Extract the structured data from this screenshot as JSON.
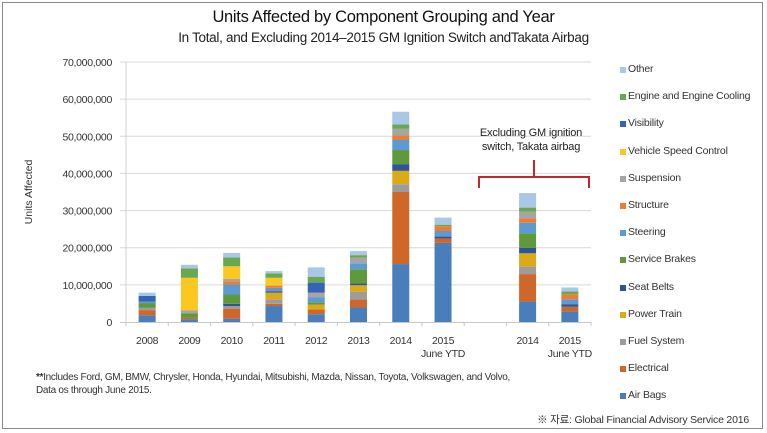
{
  "chart_data": {
    "type": "bar",
    "stacked": true,
    "title": "Units Affected by Component Grouping and Year",
    "subtitle": "In Total, and Excluding 2014–2015 GM Ignition Switch andTakata Airbag",
    "xlabel": "",
    "ylabel": "Units Affected",
    "ylim": [
      0,
      70000000
    ],
    "yticks": [
      0,
      10000000,
      20000000,
      30000000,
      40000000,
      50000000,
      60000000,
      70000000
    ],
    "ytick_labels": [
      "0",
      "10,000,000",
      "20,000,000",
      "30,000,000",
      "40,000,000",
      "50,000,000",
      "60,000,000",
      "70,000,000"
    ],
    "grid": true,
    "legend_position": "right",
    "categories": [
      {
        "label": "2008",
        "sublabel": ""
      },
      {
        "label": "2009",
        "sublabel": ""
      },
      {
        "label": "2010",
        "sublabel": ""
      },
      {
        "label": "2011",
        "sublabel": ""
      },
      {
        "label": "2012",
        "sublabel": ""
      },
      {
        "label": "2013",
        "sublabel": ""
      },
      {
        "label": "2014",
        "sublabel": ""
      },
      {
        "label": "2015",
        "sublabel": "June YTD"
      },
      {
        "label": "",
        "sublabel": ""
      },
      {
        "label": "2014",
        "sublabel": ""
      },
      {
        "label": "2015",
        "sublabel": "June YTD"
      }
    ],
    "series": [
      {
        "name": "Air Bags",
        "color": "#4a7ebb",
        "values": [
          1800000,
          700000,
          900000,
          4300000,
          2100000,
          3900000,
          15600000,
          21300000,
          0,
          5500000,
          2800000
        ]
      },
      {
        "name": "Electrical",
        "color": "#d0672a",
        "values": [
          1400000,
          400000,
          2700000,
          600000,
          1300000,
          2200000,
          19400000,
          1200000,
          0,
          7400000,
          1300000
        ]
      },
      {
        "name": "Fuel System",
        "color": "#9c9c9c",
        "values": [
          600000,
          0,
          700000,
          1200000,
          0,
          2000000,
          2100000,
          0,
          0,
          2000000,
          0
        ]
      },
      {
        "name": "Power Train",
        "color": "#dcaa14",
        "values": [
          0,
          0,
          0,
          1800000,
          1300000,
          1800000,
          3600000,
          0,
          0,
          3600000,
          0
        ]
      },
      {
        "name": "Seat Belts",
        "color": "#2f5597",
        "values": [
          0,
          0,
          600000,
          400000,
          0,
          500000,
          1800000,
          500000,
          0,
          1500000,
          700000
        ]
      },
      {
        "name": "Service Brakes",
        "color": "#5e9a3a",
        "values": [
          1300000,
          1200000,
          2500000,
          0,
          600000,
          3800000,
          3800000,
          0,
          0,
          3900000,
          0
        ]
      },
      {
        "name": "Steering",
        "color": "#5b9bd5",
        "values": [
          400000,
          0,
          2700000,
          900000,
          1300000,
          1600000,
          2700000,
          1500000,
          0,
          2800000,
          1300000
        ]
      },
      {
        "name": "Structure",
        "color": "#ed7d31",
        "values": [
          0,
          0,
          900000,
          600000,
          0,
          0,
          1200000,
          1300000,
          0,
          1200000,
          1400000
        ]
      },
      {
        "name": "Suspension",
        "color": "#a5a5a5",
        "values": [
          0,
          800000,
          600000,
          0,
          1300000,
          1500000,
          1800000,
          0,
          0,
          1800000,
          0
        ]
      },
      {
        "name": "Vehicle Speed Control",
        "color": "#fbc720",
        "values": [
          0,
          8800000,
          3400000,
          2100000,
          0,
          0,
          0,
          0,
          0,
          0,
          0
        ]
      },
      {
        "name": "Visibility",
        "color": "#3465b4",
        "values": [
          1500000,
          0,
          0,
          0,
          2700000,
          0,
          0,
          0,
          0,
          0,
          0
        ]
      },
      {
        "name": "Engine and Engine Cooling",
        "color": "#6aa84f",
        "values": [
          0,
          2500000,
          2400000,
          1200000,
          1600000,
          700000,
          1200000,
          400000,
          0,
          1100000,
          700000
        ]
      },
      {
        "name": "Other",
        "color": "#a9c7e8",
        "values": [
          900000,
          1000000,
          1200000,
          600000,
          2500000,
          1100000,
          3400000,
          1900000,
          0,
          3900000,
          1100000
        ]
      }
    ],
    "legend_order": [
      "Other",
      "Engine and Engine Cooling",
      "Visibility",
      "Vehicle Speed Control",
      "Suspension",
      "Structure",
      "Steering",
      "Service Brakes",
      "Seat Belts",
      "Power Train",
      "Fuel System",
      "Electrical",
      "Air Bags"
    ],
    "annotation": {
      "lines": [
        "Excluding GM ignition",
        "switch, Takata airbag"
      ],
      "bracket_color": "#c0282d",
      "applies_to_categories": [
        8,
        9,
        10
      ]
    }
  },
  "footnote": {
    "marker": "**",
    "text": "Includes Ford, GM, BMW, Chrysler, Honda, Hyundai, Mitsubishi, Mazda, Nissan, Toyota, Volkswagen, and Volvo, Data os through June 2015."
  },
  "source": "※ 자료: Global Financial Advisory Service 2016"
}
